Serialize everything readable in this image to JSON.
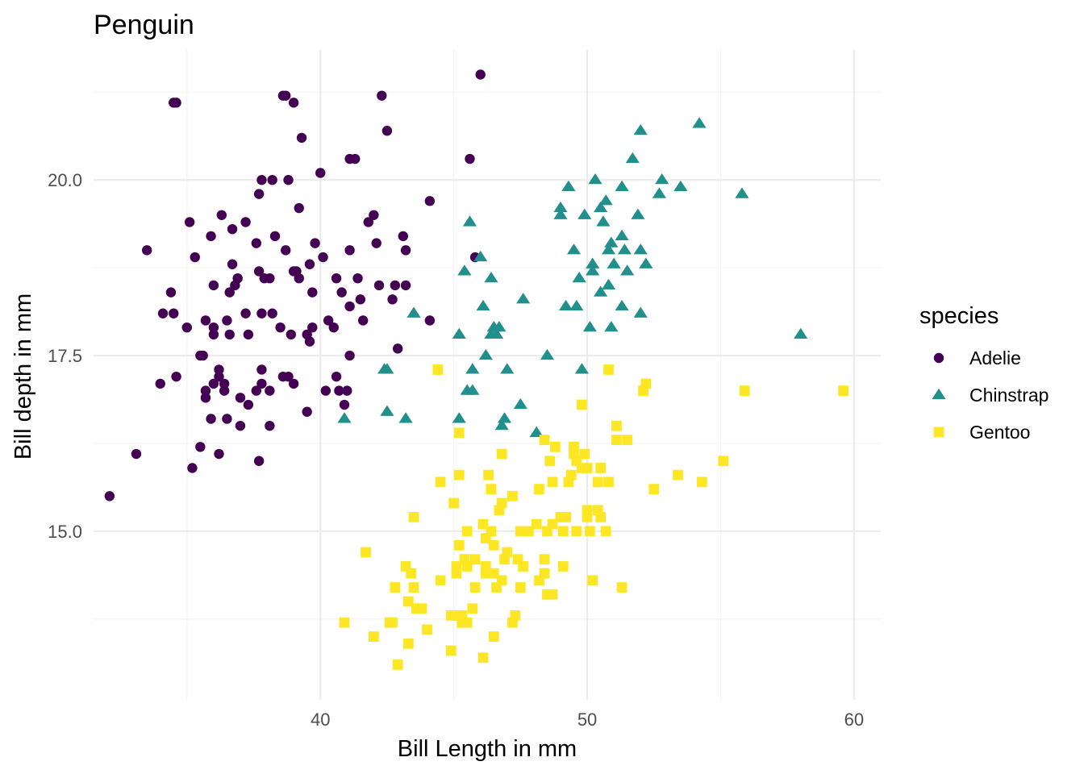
{
  "chart_data": {
    "type": "scatter",
    "title": "Penguin",
    "xlabel": "Bill Length  in mm",
    "ylabel": "Bill depth in mm",
    "xlim": [
      31.5,
      61
    ],
    "ylim": [
      12.6,
      21.85
    ],
    "x_ticks": [
      40,
      50,
      60
    ],
    "x_tick_labels": [
      "40",
      "50",
      "60"
    ],
    "x_minor_ticks": [
      35,
      45,
      55
    ],
    "y_ticks": [
      15.0,
      17.5,
      20.0
    ],
    "y_tick_labels": [
      "15.0",
      "17.5",
      "20.0"
    ],
    "y_minor_ticks": [
      13.75,
      16.25,
      18.75,
      21.25
    ],
    "grid": true,
    "legend": {
      "title": "species",
      "position": "right"
    },
    "series": [
      {
        "name": "Adelie",
        "shape": "circle",
        "color": "#440154",
        "points": [
          [
            32.1,
            15.5
          ],
          [
            33.1,
            16.1
          ],
          [
            33.5,
            19.0
          ],
          [
            34.0,
            17.1
          ],
          [
            34.1,
            18.1
          ],
          [
            34.4,
            18.4
          ],
          [
            34.5,
            18.1
          ],
          [
            34.6,
            21.1
          ],
          [
            34.6,
            17.2
          ],
          [
            35.0,
            17.9
          ],
          [
            35.1,
            19.4
          ],
          [
            35.2,
            15.9
          ],
          [
            35.3,
            18.9
          ],
          [
            35.5,
            16.2
          ],
          [
            35.5,
            17.5
          ],
          [
            35.6,
            17.5
          ],
          [
            35.7,
            16.9
          ],
          [
            35.7,
            17.0
          ],
          [
            35.7,
            18.0
          ],
          [
            35.9,
            16.6
          ],
          [
            35.9,
            19.2
          ],
          [
            36.0,
            17.1
          ],
          [
            36.0,
            17.8
          ],
          [
            36.0,
            18.5
          ],
          [
            36.0,
            17.9
          ],
          [
            36.2,
            16.1
          ],
          [
            36.2,
            17.2
          ],
          [
            36.2,
            17.3
          ],
          [
            36.3,
            19.5
          ],
          [
            36.4,
            17.1
          ],
          [
            36.4,
            17.0
          ],
          [
            36.5,
            16.6
          ],
          [
            36.5,
            18.0
          ],
          [
            36.6,
            17.8
          ],
          [
            36.6,
            18.4
          ],
          [
            36.7,
            19.3
          ],
          [
            36.7,
            18.8
          ],
          [
            36.8,
            18.5
          ],
          [
            36.9,
            18.6
          ],
          [
            37.0,
            16.9
          ],
          [
            37.0,
            16.5
          ],
          [
            37.2,
            18.1
          ],
          [
            37.2,
            19.4
          ],
          [
            37.3,
            17.8
          ],
          [
            37.3,
            16.8
          ],
          [
            37.6,
            19.1
          ],
          [
            37.6,
            17.0
          ],
          [
            37.7,
            18.7
          ],
          [
            37.7,
            19.8
          ],
          [
            37.7,
            16.0
          ],
          [
            37.8,
            17.1
          ],
          [
            37.8,
            20.0
          ],
          [
            37.8,
            18.1
          ],
          [
            37.8,
            17.3
          ],
          [
            37.9,
            18.6
          ],
          [
            38.1,
            18.6
          ],
          [
            38.1,
            17.0
          ],
          [
            38.1,
            16.5
          ],
          [
            38.2,
            18.1
          ],
          [
            38.2,
            20.0
          ],
          [
            38.3,
            19.2
          ],
          [
            38.5,
            17.9
          ],
          [
            38.6,
            21.2
          ],
          [
            38.6,
            17.2
          ],
          [
            38.7,
            19.0
          ],
          [
            38.8,
            17.2
          ],
          [
            38.8,
            20.0
          ],
          [
            38.9,
            17.8
          ],
          [
            39.0,
            17.1
          ],
          [
            39.0,
            18.7
          ],
          [
            39.1,
            18.7
          ],
          [
            39.2,
            19.6
          ],
          [
            39.2,
            18.6
          ],
          [
            39.3,
            20.6
          ],
          [
            39.5,
            16.7
          ],
          [
            39.5,
            17.8
          ],
          [
            39.6,
            17.7
          ],
          [
            39.6,
            18.8
          ],
          [
            39.7,
            18.4
          ],
          [
            39.7,
            17.9
          ],
          [
            39.8,
            19.1
          ],
          [
            40.1,
            18.9
          ],
          [
            40.2,
            17.0
          ],
          [
            40.3,
            18.0
          ],
          [
            40.5,
            17.9
          ],
          [
            40.6,
            18.6
          ],
          [
            40.6,
            17.2
          ],
          [
            40.7,
            17.0
          ],
          [
            40.8,
            18.4
          ],
          [
            40.9,
            16.8
          ],
          [
            41.0,
            17.0
          ],
          [
            41.1,
            17.5
          ],
          [
            41.1,
            18.2
          ],
          [
            41.1,
            19.0
          ],
          [
            41.3,
            20.3
          ],
          [
            41.4,
            18.6
          ],
          [
            41.5,
            18.3
          ],
          [
            41.6,
            18.0
          ],
          [
            41.8,
            19.4
          ],
          [
            42.0,
            19.5
          ],
          [
            42.1,
            19.1
          ],
          [
            42.2,
            18.5
          ],
          [
            42.3,
            21.2
          ],
          [
            42.5,
            20.7
          ],
          [
            42.7,
            18.3
          ],
          [
            42.8,
            18.5
          ],
          [
            42.9,
            17.6
          ],
          [
            43.1,
            19.2
          ],
          [
            43.2,
            19.0
          ],
          [
            43.2,
            18.5
          ],
          [
            44.1,
            19.7
          ],
          [
            44.1,
            18.0
          ],
          [
            45.6,
            20.3
          ],
          [
            45.8,
            18.9
          ],
          [
            46.0,
            21.5
          ],
          [
            40.0,
            20.1
          ],
          [
            39.0,
            21.1
          ],
          [
            34.5,
            21.1
          ],
          [
            41.1,
            20.3
          ],
          [
            38.7,
            21.2
          ]
        ]
      },
      {
        "name": "Chinstrap",
        "shape": "triangle",
        "color": "#21908c",
        "points": [
          [
            40.9,
            16.6
          ],
          [
            42.4,
            17.3
          ],
          [
            42.5,
            16.7
          ],
          [
            42.5,
            17.3
          ],
          [
            43.2,
            16.6
          ],
          [
            43.5,
            18.1
          ],
          [
            45.2,
            16.6
          ],
          [
            45.2,
            17.8
          ],
          [
            45.4,
            18.7
          ],
          [
            45.5,
            17.0
          ],
          [
            45.6,
            19.4
          ],
          [
            45.7,
            17.0
          ],
          [
            45.7,
            17.3
          ],
          [
            46.0,
            18.9
          ],
          [
            46.1,
            18.2
          ],
          [
            46.2,
            17.5
          ],
          [
            46.4,
            18.6
          ],
          [
            46.4,
            17.8
          ],
          [
            46.5,
            17.9
          ],
          [
            46.6,
            17.8
          ],
          [
            46.7,
            17.9
          ],
          [
            46.8,
            16.5
          ],
          [
            46.9,
            16.6
          ],
          [
            47.0,
            17.3
          ],
          [
            47.5,
            16.8
          ],
          [
            47.6,
            18.3
          ],
          [
            48.1,
            16.4
          ],
          [
            48.5,
            17.5
          ],
          [
            49.0,
            19.5
          ],
          [
            49.0,
            19.6
          ],
          [
            49.2,
            18.2
          ],
          [
            49.3,
            19.9
          ],
          [
            49.5,
            19.0
          ],
          [
            49.6,
            18.2
          ],
          [
            49.7,
            18.6
          ],
          [
            49.8,
            17.3
          ],
          [
            49.9,
            19.5
          ],
          [
            50.1,
            17.9
          ],
          [
            50.2,
            18.7
          ],
          [
            50.2,
            18.8
          ],
          [
            50.3,
            20.0
          ],
          [
            50.5,
            18.4
          ],
          [
            50.5,
            19.6
          ],
          [
            50.6,
            19.4
          ],
          [
            50.7,
            19.7
          ],
          [
            50.8,
            18.5
          ],
          [
            50.8,
            19.0
          ],
          [
            50.9,
            17.9
          ],
          [
            50.9,
            19.1
          ],
          [
            51.0,
            18.8
          ],
          [
            51.3,
            18.2
          ],
          [
            51.3,
            19.2
          ],
          [
            51.3,
            19.9
          ],
          [
            51.4,
            19.0
          ],
          [
            51.5,
            18.7
          ],
          [
            51.7,
            20.3
          ],
          [
            51.9,
            19.5
          ],
          [
            52.0,
            18.1
          ],
          [
            52.0,
            19.0
          ],
          [
            52.0,
            20.7
          ],
          [
            52.2,
            18.8
          ],
          [
            52.7,
            19.8
          ],
          [
            52.8,
            20.0
          ],
          [
            53.5,
            19.9
          ],
          [
            54.2,
            20.8
          ],
          [
            55.8,
            19.8
          ],
          [
            58.0,
            17.8
          ]
        ]
      },
      {
        "name": "Gentoo",
        "shape": "square",
        "color": "#fde725",
        "points": [
          [
            40.9,
            13.7
          ],
          [
            41.7,
            14.7
          ],
          [
            42.0,
            13.5
          ],
          [
            42.6,
            13.7
          ],
          [
            42.7,
            13.7
          ],
          [
            42.8,
            14.2
          ],
          [
            42.9,
            13.1
          ],
          [
            43.2,
            14.5
          ],
          [
            43.3,
            14.0
          ],
          [
            43.3,
            13.4
          ],
          [
            43.4,
            14.4
          ],
          [
            43.5,
            14.2
          ],
          [
            43.5,
            15.2
          ],
          [
            43.6,
            13.9
          ],
          [
            43.8,
            13.9
          ],
          [
            44.0,
            13.6
          ],
          [
            44.4,
            17.3
          ],
          [
            44.5,
            14.3
          ],
          [
            44.5,
            15.7
          ],
          [
            44.9,
            13.3
          ],
          [
            44.9,
            13.8
          ],
          [
            45.0,
            15.4
          ],
          [
            45.1,
            14.5
          ],
          [
            45.1,
            14.4
          ],
          [
            45.2,
            13.8
          ],
          [
            45.2,
            14.8
          ],
          [
            45.2,
            15.8
          ],
          [
            45.2,
            16.4
          ],
          [
            45.3,
            13.7
          ],
          [
            45.3,
            13.8
          ],
          [
            45.4,
            14.6
          ],
          [
            45.4,
            14.6
          ],
          [
            45.5,
            13.7
          ],
          [
            45.5,
            15.0
          ],
          [
            45.5,
            14.5
          ],
          [
            45.7,
            13.9
          ],
          [
            45.8,
            14.6
          ],
          [
            45.8,
            14.2
          ],
          [
            46.1,
            13.2
          ],
          [
            46.1,
            15.1
          ],
          [
            46.2,
            14.5
          ],
          [
            46.2,
            14.4
          ],
          [
            46.2,
            14.9
          ],
          [
            46.3,
            15.8
          ],
          [
            46.4,
            15.0
          ],
          [
            46.4,
            15.6
          ],
          [
            46.5,
            13.5
          ],
          [
            46.5,
            14.4
          ],
          [
            46.5,
            14.8
          ],
          [
            46.6,
            14.2
          ],
          [
            46.7,
            15.3
          ],
          [
            46.8,
            14.3
          ],
          [
            46.8,
            15.4
          ],
          [
            46.8,
            16.1
          ],
          [
            46.9,
            14.6
          ],
          [
            47.0,
            14.7
          ],
          [
            47.2,
            13.7
          ],
          [
            47.2,
            15.5
          ],
          [
            47.3,
            13.8
          ],
          [
            47.4,
            14.6
          ],
          [
            47.5,
            14.2
          ],
          [
            47.5,
            15.0
          ],
          [
            47.6,
            14.5
          ],
          [
            47.7,
            15.0
          ],
          [
            47.8,
            15.0
          ],
          [
            48.1,
            15.1
          ],
          [
            48.2,
            14.3
          ],
          [
            48.2,
            15.6
          ],
          [
            48.4,
            14.4
          ],
          [
            48.4,
            14.6
          ],
          [
            48.4,
            16.3
          ],
          [
            48.5,
            14.1
          ],
          [
            48.5,
            15.0
          ],
          [
            48.6,
            16.0
          ],
          [
            48.7,
            14.1
          ],
          [
            48.7,
            15.1
          ],
          [
            48.7,
            15.7
          ],
          [
            48.8,
            16.2
          ],
          [
            49.0,
            15.2
          ],
          [
            49.1,
            14.5
          ],
          [
            49.1,
            15.0
          ],
          [
            49.2,
            15.2
          ],
          [
            49.3,
            15.7
          ],
          [
            49.4,
            15.8
          ],
          [
            49.5,
            16.1
          ],
          [
            49.5,
            16.2
          ],
          [
            49.6,
            15.0
          ],
          [
            49.6,
            16.0
          ],
          [
            49.8,
            15.9
          ],
          [
            49.8,
            16.8
          ],
          [
            49.9,
            16.1
          ],
          [
            50.0,
            15.2
          ],
          [
            50.0,
            15.3
          ],
          [
            50.0,
            15.9
          ],
          [
            50.1,
            15.0
          ],
          [
            50.2,
            14.3
          ],
          [
            50.4,
            15.3
          ],
          [
            50.4,
            15.7
          ],
          [
            50.5,
            15.2
          ],
          [
            50.5,
            15.9
          ],
          [
            50.7,
            15.0
          ],
          [
            50.8,
            15.7
          ],
          [
            50.8,
            17.3
          ],
          [
            51.1,
            16.3
          ],
          [
            51.1,
            16.5
          ],
          [
            51.3,
            14.2
          ],
          [
            51.5,
            16.3
          ],
          [
            52.1,
            17.0
          ],
          [
            52.2,
            17.1
          ],
          [
            52.5,
            15.6
          ],
          [
            53.4,
            15.8
          ],
          [
            54.3,
            15.7
          ],
          [
            55.1,
            16.0
          ],
          [
            55.9,
            17.0
          ],
          [
            59.6,
            17.0
          ]
        ]
      }
    ]
  }
}
